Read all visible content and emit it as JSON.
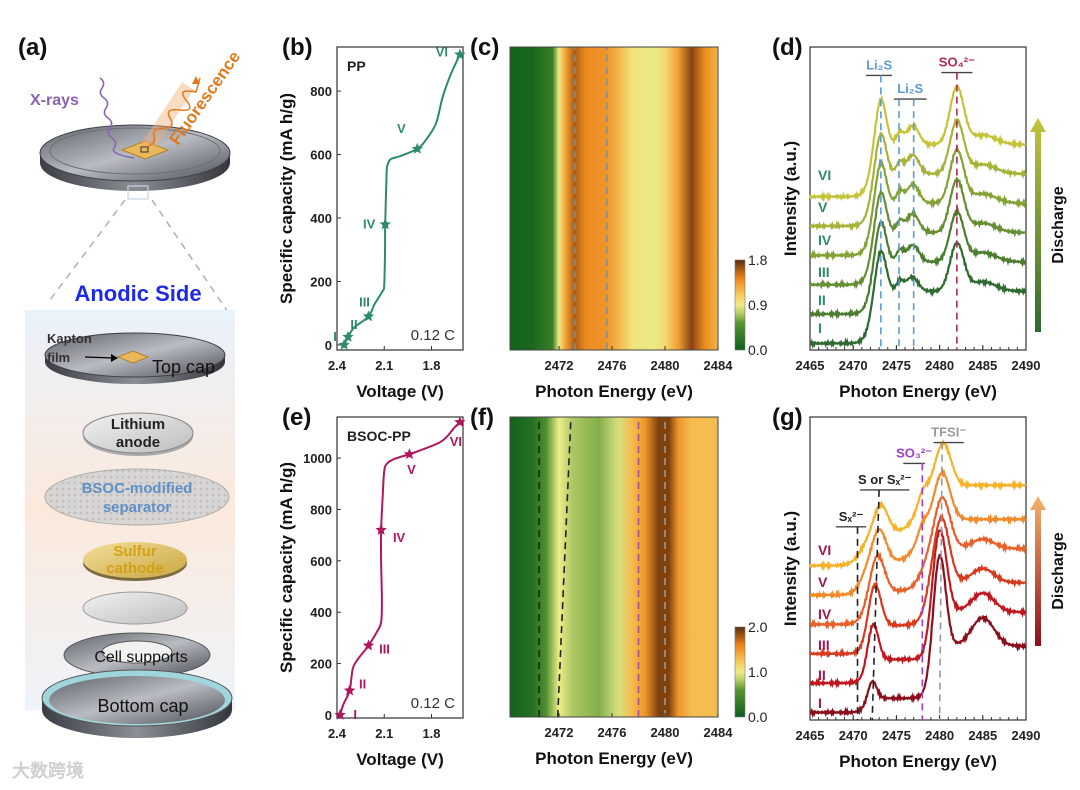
{
  "diagram": {
    "panel": "(a)",
    "xrays": "X-rays",
    "fluorescence": "Fluorescence",
    "anodic_side": "Anodic Side",
    "kapton_1": "Kapton",
    "kapton_2": "film",
    "top_cap": "Top cap",
    "lithium_1": "Lithium",
    "lithium_2": "anode",
    "separator_1": "BSOC-modified",
    "separator_2": "separator",
    "sulfur_1": "Sulfur",
    "sulfur_2": "cathode",
    "cell_supports": "Cell supports",
    "bottom_cap": "Bottom cap",
    "colors": {
      "xrays": "#8a63b0",
      "fluorescence": "#e07a20",
      "anodic": "#1f2ae8",
      "separator": "#5f8fc4",
      "sulfur": "#d4a017"
    }
  },
  "watermark": "大数跨境",
  "chart_data": [
    {
      "panel": "(b)",
      "type": "line",
      "title": "PP",
      "annotation": "0.12 C",
      "xlabel": "Voltage (V)",
      "ylabel": "Specific capacity (mA h/g)",
      "xlim": [
        2.4,
        1.6
      ],
      "ylim": [
        -16,
        939
      ],
      "xticks": [
        2.4,
        2.1,
        1.8
      ],
      "xticklabels": [
        "2.4",
        "2.1",
        "1.8"
      ],
      "yticks": [
        0,
        200,
        400,
        600,
        800
      ],
      "yticklabels": [
        "0",
        "200",
        "400",
        "600",
        "800"
      ],
      "color": "#2e8b6a",
      "x": [
        2.355,
        2.33,
        2.29,
        2.2,
        2.16,
        2.11,
        2.1,
        2.095,
        2.094,
        2.085,
        2.08,
        2.06,
        2.0,
        1.89,
        1.83,
        1.77,
        1.73,
        1.68,
        1.62
      ],
      "y": [
        0,
        25,
        55,
        90,
        130,
        170,
        190,
        300,
        380,
        540,
        565,
        585,
        595,
        618,
        650,
        700,
        780,
        850,
        915
      ],
      "markers": [
        {
          "label": "I",
          "x": 2.355,
          "y": 0
        },
        {
          "label": "II",
          "x": 2.33,
          "y": 25
        },
        {
          "label": "III",
          "x": 2.2,
          "y": 90
        },
        {
          "label": "IV",
          "x": 2.094,
          "y": 380
        },
        {
          "label": "V",
          "x": 1.89,
          "y": 618
        },
        {
          "label": "VI",
          "x": 1.62,
          "y": 915
        }
      ]
    },
    {
      "panel": "(c)",
      "type": "heatmap",
      "xlabel": "Photon Energy (eV)",
      "xlim": [
        2468.3,
        2484
      ],
      "xticks": [
        2472,
        2476,
        2480,
        2484
      ],
      "xticklabels": [
        "2472",
        "2476",
        "2480",
        "2484"
      ],
      "colorbar": {
        "min": 0,
        "max": 1.8,
        "labels": [
          "0.0",
          "0.9",
          "1.8"
        ]
      },
      "energy": [
        2468.3,
        2470,
        2471.5,
        2472,
        2472.5,
        2473.2,
        2474,
        2475.6,
        2476.5,
        2477.5,
        2479,
        2480,
        2481,
        2482,
        2483,
        2484
      ],
      "intensity": [
        0.05,
        0.1,
        0.3,
        0.9,
        1.3,
        1.6,
        1.4,
        1.35,
        1.2,
        0.95,
        0.85,
        1.0,
        1.3,
        1.7,
        1.4,
        1.2
      ],
      "guides": [
        {
          "x0": 2473.2,
          "x1": 2473.2,
          "color": "#8c8c8c"
        },
        {
          "x0": 2475.6,
          "x1": 2475.6,
          "color": "#8c8c8c"
        },
        {
          "x0": 2482,
          "x1": 2482,
          "color": "#b02a3a"
        }
      ]
    },
    {
      "panel": "(d)",
      "type": "line",
      "xlabel": "Photon Energy (eV)",
      "ylabel": "Intensity (a.u.)",
      "xlim": [
        2465,
        2490
      ],
      "ylim": [
        0,
        3.2
      ],
      "xticks": [
        2465,
        2470,
        2475,
        2480,
        2485,
        2490
      ],
      "xticklabels": [
        "2465",
        "2470",
        "2475",
        "2480",
        "2485",
        "2490"
      ],
      "arrow_label": "Discharge",
      "arrow_colors": [
        "#2f6a30",
        "#c4c43c"
      ],
      "series": [
        {
          "name": "I",
          "color": "#2f6a30",
          "offset": 0.07,
          "steps": [
            [
              2472,
              0.55,
              0.4
            ]
          ],
          "peaks": [
            [
              2473.2,
              0.45,
              0.6
            ],
            [
              2475.4,
              0.1,
              0.4
            ],
            [
              2476.8,
              0.15,
              0.7
            ],
            [
              2482,
              0.5,
              0.8
            ],
            [
              2485,
              0.1,
              1.5
            ]
          ]
        },
        {
          "name": "II",
          "color": "#4a7d2f",
          "offset": 0.38,
          "steps": [
            [
              2472,
              0.55,
              0.4
            ]
          ],
          "peaks": [
            [
              2473.2,
              0.45,
              0.6
            ],
            [
              2475.4,
              0.12,
              0.4
            ],
            [
              2476.9,
              0.18,
              0.7
            ],
            [
              2482,
              0.52,
              0.8
            ],
            [
              2485,
              0.1,
              1.5
            ]
          ]
        },
        {
          "name": "III",
          "color": "#668f33",
          "offset": 0.69,
          "steps": [
            [
              2472,
              0.55,
              0.4
            ]
          ],
          "peaks": [
            [
              2473.2,
              0.45,
              0.6
            ],
            [
              2475.4,
              0.12,
              0.4
            ],
            [
              2476.9,
              0.2,
              0.7
            ],
            [
              2482,
              0.55,
              0.8
            ],
            [
              2485,
              0.1,
              1.5
            ]
          ]
        },
        {
          "name": "IV",
          "color": "#84a236",
          "offset": 1.0,
          "steps": [
            [
              2472,
              0.55,
              0.4
            ]
          ],
          "peaks": [
            [
              2473.2,
              0.45,
              0.6
            ],
            [
              2475.4,
              0.12,
              0.4
            ],
            [
              2476.9,
              0.2,
              0.7
            ],
            [
              2482,
              0.55,
              0.8
            ],
            [
              2485,
              0.1,
              1.5
            ]
          ]
        },
        {
          "name": "V",
          "color": "#a5b438",
          "offset": 1.31,
          "steps": [
            [
              2472,
              0.55,
              0.4
            ]
          ],
          "peaks": [
            [
              2473.2,
              0.45,
              0.6
            ],
            [
              2475.4,
              0.12,
              0.4
            ],
            [
              2476.9,
              0.2,
              0.7
            ],
            [
              2482,
              0.55,
              0.8
            ],
            [
              2485,
              0.1,
              1.5
            ]
          ]
        },
        {
          "name": "VI",
          "color": "#c4c43c",
          "offset": 1.62,
          "steps": [
            [
              2472,
              0.55,
              0.4
            ]
          ],
          "peaks": [
            [
              2473.2,
              0.5,
              0.6
            ],
            [
              2475.4,
              0.12,
              0.4
            ],
            [
              2476.9,
              0.2,
              0.7
            ],
            [
              2482,
              0.6,
              0.8
            ],
            [
              2485,
              0.1,
              1.5
            ]
          ]
        }
      ],
      "annotations": [
        {
          "text": "Li₂S",
          "color": "#5b9bd5",
          "bar": [
            2471.5,
            2474.5
          ],
          "level": 2.9,
          "lines": [
            2473.2
          ]
        },
        {
          "text": "Li₂S",
          "color": "#5b9bd5",
          "bar": [
            2474.7,
            2478.5
          ],
          "level": 2.65,
          "lines": [
            2475.3,
            2477
          ]
        },
        {
          "text": "SO₄²⁻",
          "color": "#b02a4a",
          "bar": [
            2480.2,
            2483.8
          ],
          "level": 2.93,
          "lines": [
            2482
          ]
        }
      ]
    },
    {
      "panel": "(e)",
      "type": "line",
      "title": "BSOC-PP",
      "annotation": "0.12 C",
      "xlabel": "Voltage (V)",
      "ylabel": "Specific capacity (mA h/g)",
      "xlim": [
        2.4,
        1.6
      ],
      "ylim": [
        -12,
        1160
      ],
      "xticks": [
        2.4,
        2.1,
        1.8
      ],
      "xticklabels": [
        "2.4",
        "2.1",
        "1.8"
      ],
      "yticks": [
        0,
        200,
        400,
        600,
        800,
        1000
      ],
      "yticklabels": [
        "0",
        "200",
        "400",
        "600",
        "800",
        "1000"
      ],
      "color": "#b0175e",
      "x": [
        2.38,
        2.36,
        2.32,
        2.3,
        2.27,
        2.2,
        2.15,
        2.12,
        2.115,
        2.12,
        2.12,
        2.11,
        2.1,
        2.08,
        2.03,
        1.94,
        1.85,
        1.75,
        1.7,
        1.66,
        1.62
      ],
      "y": [
        0,
        40,
        95,
        180,
        215,
        270,
        320,
        360,
        450,
        600,
        720,
        850,
        950,
        980,
        998,
        1015,
        1035,
        1060,
        1085,
        1115,
        1140
      ],
      "markers": [
        {
          "label": "I",
          "x": 2.38,
          "y": 0
        },
        {
          "label": "II",
          "x": 2.32,
          "y": 95
        },
        {
          "label": "III",
          "x": 2.2,
          "y": 270
        },
        {
          "label": "IV",
          "x": 2.12,
          "y": 720
        },
        {
          "label": "V",
          "x": 1.94,
          "y": 1015
        },
        {
          "label": "VI",
          "x": 1.62,
          "y": 1140
        }
      ]
    },
    {
      "panel": "(f)",
      "type": "heatmap",
      "xlabel": "Photon Energy (eV)",
      "xlim": [
        2468.3,
        2484
      ],
      "xticks": [
        2472,
        2476,
        2480,
        2484
      ],
      "xticklabels": [
        "2472",
        "2476",
        "2480",
        "2484"
      ],
      "colorbar": {
        "min": 0,
        "max": 2.0,
        "labels": [
          "0.0",
          "1.0",
          "2.0"
        ]
      },
      "energy": [
        2468.3,
        2470,
        2471,
        2472,
        2473,
        2475,
        2476.5,
        2477.5,
        2478.5,
        2479.5,
        2480.3,
        2481,
        2482,
        2484
      ],
      "intensity": [
        0.05,
        0.2,
        0.5,
        0.95,
        0.8,
        0.7,
        0.9,
        1.3,
        1.5,
        1.9,
        1.9,
        1.5,
        1.3,
        1.3
      ],
      "guides": [
        {
          "x0": 2470.5,
          "x1": 2470.5,
          "color": "#222222"
        },
        {
          "x0": 2471.9,
          "x1": 2472.9,
          "color": "#222222"
        },
        {
          "x0": 2478,
          "x1": 2478,
          "color": "#a0529a"
        },
        {
          "x0": 2480,
          "x1": 2480,
          "color": "#9a9a9a"
        }
      ]
    },
    {
      "panel": "(g)",
      "type": "line",
      "xlabel": "Photon Energy (eV)",
      "ylabel": "Intensity (a.u.)",
      "xlim": [
        2465,
        2490
      ],
      "ylim": [
        0,
        3.2
      ],
      "xticks": [
        2465,
        2470,
        2475,
        2480,
        2485,
        2490
      ],
      "xticklabels": [
        "2465",
        "2470",
        "2475",
        "2480",
        "2485",
        "2490"
      ],
      "arrow_label": "Discharge",
      "arrow_colors": [
        "#8b0f1a",
        "#f7b26a"
      ],
      "series": [
        {
          "name": "I",
          "color": "#8b0f1a",
          "offset": 0.08,
          "steps": [
            [
              2471.5,
              0.15,
              0.4
            ],
            [
              2479,
              0.55,
              0.4
            ]
          ],
          "peaks": [
            [
              2472.2,
              0.2,
              0.5
            ],
            [
              2480,
              1.0,
              0.7
            ],
            [
              2485,
              0.3,
              1.3
            ]
          ]
        },
        {
          "name": "II",
          "color": "#c0181f",
          "offset": 0.39,
          "steps": [
            [
              2471.5,
              0.25,
              0.4
            ],
            [
              2479,
              0.5,
              0.4
            ]
          ],
          "peaks": [
            [
              2472.3,
              0.4,
              0.6
            ],
            [
              2480,
              0.9,
              0.8
            ],
            [
              2485,
              0.2,
              1.3
            ]
          ]
        },
        {
          "name": "III",
          "color": "#d83a1e",
          "offset": 0.7,
          "steps": [
            [
              2471.5,
              0.3,
              0.4
            ],
            [
              2478.5,
              0.45,
              0.5
            ]
          ],
          "peaks": [
            [
              2472.5,
              0.45,
              0.7
            ],
            [
              2480.2,
              0.7,
              0.9
            ],
            [
              2485,
              0.15,
              1.3
            ]
          ]
        },
        {
          "name": "IV",
          "color": "#e8602a",
          "offset": 1.01,
          "steps": [
            [
              2471.5,
              0.35,
              0.5
            ],
            [
              2478,
              0.45,
              0.6
            ]
          ],
          "peaks": [
            [
              2472.8,
              0.4,
              0.8
            ],
            [
              2480.3,
              0.55,
              0.9
            ],
            [
              2485,
              0.1,
              1.3
            ]
          ]
        },
        {
          "name": "V",
          "color": "#f08a2a",
          "offset": 1.32,
          "steps": [
            [
              2471,
              0.35,
              0.5
            ],
            [
              2477.5,
              0.45,
              0.7
            ]
          ],
          "peaks": [
            [
              2473,
              0.35,
              0.8
            ],
            [
              2478,
              0.1,
              0.5
            ],
            [
              2480.3,
              0.5,
              0.9
            ]
          ]
        },
        {
          "name": "VI",
          "color": "#f5b22a",
          "offset": 1.63,
          "steps": [
            [
              2471,
              0.35,
              0.6
            ],
            [
              2477.5,
              0.5,
              0.7
            ]
          ],
          "peaks": [
            [
              2473.2,
              0.3,
              0.8
            ],
            [
              2478,
              0.1,
              0.5
            ],
            [
              2480.4,
              0.45,
              0.9
            ]
          ]
        }
      ],
      "annotations": [
        {
          "text": "Sₓ²⁻",
          "color": "#222222",
          "bar": [
            2468,
            2471.5
          ],
          "level": 2.04,
          "lines": [
            2470.5
          ],
          "lines_bottom": [
            2470.5
          ]
        },
        {
          "text": "S or Sₓ²⁻",
          "color": "#222222",
          "bar": [
            2470.8,
            2476.5
          ],
          "level": 2.43,
          "lines": [
            2473
          ],
          "lines_bottom": [
            2472.2
          ]
        },
        {
          "text": "SO₃²⁻",
          "color": "#a040c8",
          "bar": [
            2475.8,
            2478.3
          ],
          "level": 2.71,
          "lines": [
            2478
          ],
          "lines_bottom": [
            2478
          ]
        },
        {
          "text": "TFSI⁻",
          "color": "#999999",
          "bar": [
            2479.3,
            2482.8
          ],
          "level": 2.93,
          "lines": [
            2480.3
          ],
          "lines_bottom": [
            2480
          ]
        }
      ]
    }
  ]
}
